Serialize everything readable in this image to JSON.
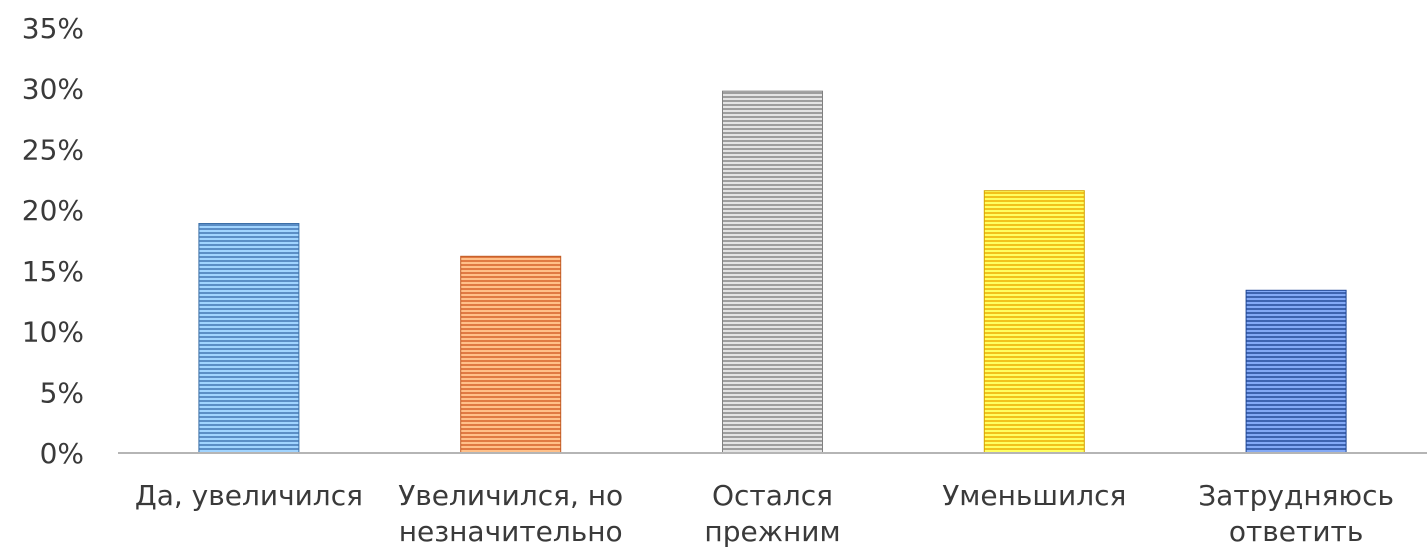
{
  "chart_data": {
    "type": "bar",
    "title": "",
    "xlabel": "",
    "ylabel": "",
    "categories": [
      [
        "Да, увеличился"
      ],
      [
        "Увеличился, но",
        "незначительно"
      ],
      [
        "Остался",
        "прежним"
      ],
      [
        "Уменьшился"
      ],
      [
        "Затрудняюсь",
        "ответить"
      ]
    ],
    "values": [
      18.9,
      16.2,
      29.8,
      21.6,
      13.4
    ],
    "ylim": [
      0,
      35
    ],
    "yticks": [
      0,
      5,
      10,
      15,
      20,
      25,
      30,
      35
    ],
    "ytick_labels": [
      "0%",
      "5%",
      "10%",
      "15%",
      "20%",
      "25%",
      "30%",
      "35%"
    ],
    "grid": false,
    "legend": "none",
    "colors": [
      "#5b8ec6",
      "#e07a43",
      "#9e9e9e",
      "#f2c21b",
      "#3d63b0"
    ]
  }
}
